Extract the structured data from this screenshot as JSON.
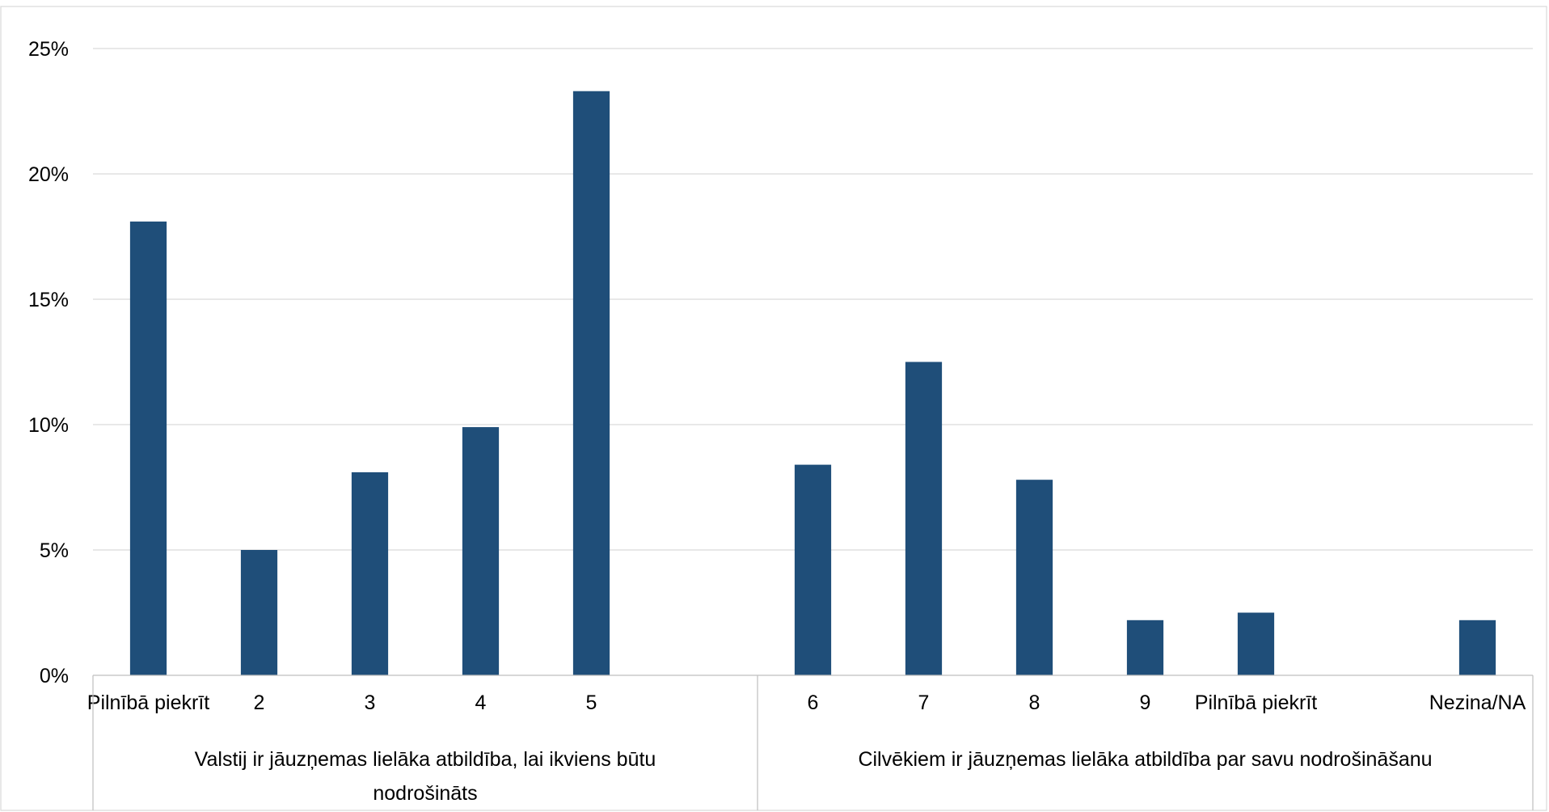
{
  "chart_data": {
    "type": "bar",
    "title": "",
    "xlabel": "",
    "ylabel": "",
    "ylim": [
      0,
      25
    ],
    "yticks": [
      0,
      5,
      10,
      15,
      20,
      25
    ],
    "ytick_format": "{v}%",
    "grid": true,
    "legend": "none",
    "bar_color": "#1f4e79",
    "categories": [
      "Pilnībā piekrīt",
      "2",
      "3",
      "4",
      "5",
      "",
      "6",
      "7",
      "8",
      "9",
      "Pilnībā piekrīt",
      "",
      "Nezina/NA"
    ],
    "values": [
      18.1,
      5.0,
      8.1,
      9.9,
      23.3,
      null,
      8.4,
      12.5,
      7.8,
      2.2,
      2.5,
      null,
      2.2
    ],
    "groups": [
      {
        "label_lines": [
          "Valstij ir jāuzņemas lielāka atbildība, lai ikviens būtu",
          "nodrošināts"
        ],
        "start": 0,
        "end": 5
      },
      {
        "label_lines": [
          "Cilvēkiem ir jāuzņemas lielāka atbildība par savu nodrošināšanu"
        ],
        "start": 6,
        "end": 12
      }
    ]
  }
}
